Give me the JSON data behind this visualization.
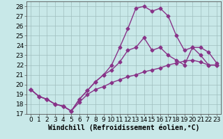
{
  "xlabel": "Windchill (Refroidissement éolien,°C)",
  "background_color": "#c8e8e8",
  "grid_color": "#9fbebe",
  "line_color": "#883388",
  "xlim": [
    -0.5,
    23.5
  ],
  "ylim": [
    17,
    28.5
  ],
  "xticks": [
    0,
    1,
    2,
    3,
    4,
    5,
    6,
    7,
    8,
    9,
    10,
    11,
    12,
    13,
    14,
    15,
    16,
    17,
    18,
    19,
    20,
    21,
    22,
    23
  ],
  "yticks": [
    17,
    18,
    19,
    20,
    21,
    22,
    23,
    24,
    25,
    26,
    27,
    28
  ],
  "line1_x": [
    0,
    1,
    2,
    3,
    4,
    5,
    6,
    7,
    8,
    9,
    10,
    11,
    12,
    13,
    14,
    15,
    16,
    17,
    18,
    19,
    20,
    21,
    22,
    23
  ],
  "line1_y": [
    19.5,
    18.8,
    18.5,
    18.0,
    17.8,
    17.3,
    18.5,
    19.4,
    20.3,
    21.0,
    22.0,
    23.8,
    25.7,
    27.8,
    28.0,
    27.5,
    27.8,
    27.0,
    25.0,
    23.5,
    23.8,
    23.0,
    22.0,
    22.0
  ],
  "line2_x": [
    0,
    1,
    2,
    3,
    4,
    5,
    6,
    7,
    8,
    9,
    10,
    11,
    12,
    13,
    14,
    15,
    16,
    17,
    18,
    19,
    20,
    21,
    22,
    23
  ],
  "line2_y": [
    19.5,
    18.8,
    18.5,
    18.0,
    17.8,
    17.3,
    18.5,
    19.4,
    20.3,
    21.0,
    21.5,
    22.3,
    23.5,
    23.8,
    24.8,
    23.5,
    23.8,
    23.0,
    22.5,
    22.0,
    23.8,
    23.8,
    23.3,
    22.2
  ],
  "line3_x": [
    0,
    1,
    2,
    3,
    4,
    5,
    6,
    7,
    8,
    9,
    10,
    11,
    12,
    13,
    14,
    15,
    16,
    17,
    18,
    19,
    20,
    21,
    22,
    23
  ],
  "line3_y": [
    19.5,
    18.8,
    18.5,
    18.0,
    17.8,
    17.3,
    18.2,
    19.0,
    19.5,
    19.8,
    20.2,
    20.5,
    20.8,
    21.0,
    21.3,
    21.5,
    21.7,
    22.0,
    22.2,
    22.4,
    22.5,
    22.3,
    22.0,
    22.0
  ],
  "marker_size": 2.5,
  "line_width": 1.0,
  "font_size_ticks": 6.5,
  "font_size_xlabel": 7.0
}
